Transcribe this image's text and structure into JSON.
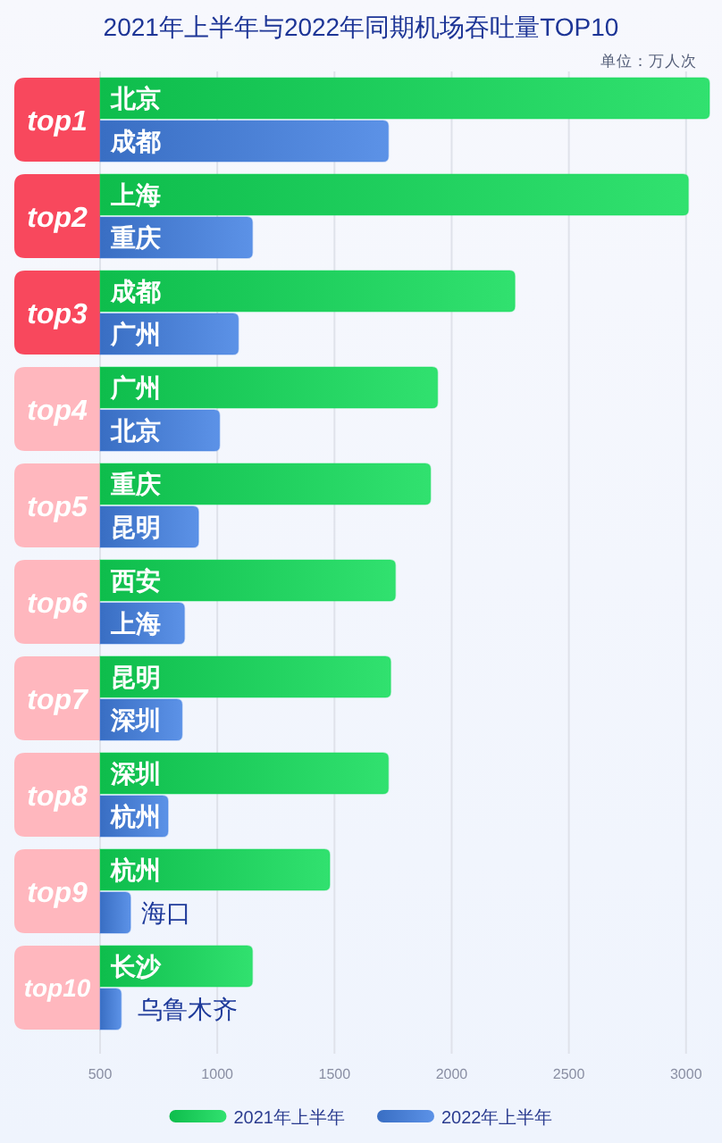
{
  "chart_data": {
    "type": "bar",
    "orientation": "horizontal",
    "title": "2021年上半年与2022年同期机场吞吐量TOP10",
    "subtitle": "单位：万人次",
    "categories": [
      "top1",
      "top2",
      "top3",
      "top4",
      "top5",
      "top6",
      "top7",
      "top8",
      "top9",
      "top10"
    ],
    "series": [
      {
        "name": "2021年上半年",
        "color": "#10dc58",
        "values": [
          3100,
          3010,
          2270,
          1940,
          1910,
          1760,
          1740,
          1730,
          1480,
          1150
        ],
        "value_labels": [
          "北京",
          "上海",
          "成都",
          "广州",
          "重庆",
          "西安",
          "昆明",
          "深圳",
          "杭州",
          "长沙"
        ]
      },
      {
        "name": "2022年上半年",
        "color": "#4280e3",
        "values": [
          1730,
          1150,
          1090,
          1010,
          920,
          860,
          850,
          790,
          630,
          590
        ],
        "value_labels": [
          "成都",
          "重庆",
          "广州",
          "北京",
          "昆明",
          "上海",
          "深圳",
          "杭州",
          "海口",
          "乌鲁木齐"
        ]
      }
    ],
    "xlim": [
      500,
      3100
    ],
    "xticks": [
      500,
      1000,
      1500,
      2000,
      2500,
      3000
    ],
    "grid": "x",
    "legend": "bottom"
  }
}
